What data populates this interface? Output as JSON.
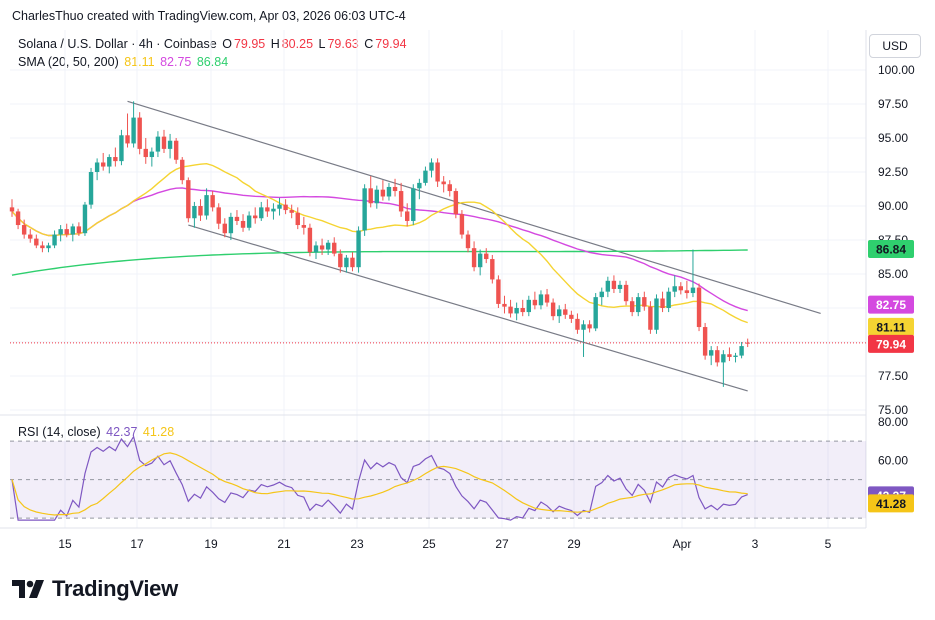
{
  "attribution": "CharlesThuo created with TradingView.com, Apr 03, 2026 06:03 UTC-4",
  "currency": "USD",
  "symbol_legend": {
    "name": "Solana / U.S. Dollar · 4h · Coinbase",
    "open_label": "O",
    "open": "79.95",
    "high_label": "H",
    "high": "80.25",
    "low_label": "L",
    "low": "79.63",
    "close_label": "C",
    "close": "79.94"
  },
  "sma_legend": {
    "label": "SMA (20, 50, 200)",
    "v20": "81.11",
    "v50": "82.75",
    "v200": "86.84"
  },
  "rsi_legend": {
    "label": "RSI (14, close)",
    "rsi": "42.37",
    "ma": "41.28"
  },
  "brand": "TradingView",
  "colors": {
    "up": "#26a69a",
    "down": "#ef5350",
    "sma20": "#f5d432",
    "sma50": "#d449e0",
    "sma200": "#2fcf6e",
    "rsi": "#7e57c2",
    "rsi_ma": "#f5c518",
    "channel": "#787b86",
    "last_price": "#f23645"
  },
  "chart_data": [
    {
      "type": "candlestick",
      "title": "Solana / U.S. Dollar · 4h · Coinbase",
      "x_ticks": [
        "15",
        "17",
        "19",
        "21",
        "23",
        "25",
        "27",
        "29",
        "Apr",
        "3",
        "5"
      ],
      "y_ticks": [
        "75.00",
        "77.50",
        "80.00",
        "82.50",
        "85.00",
        "87.50",
        "90.00",
        "92.50",
        "95.00",
        "97.50",
        "100.00"
      ],
      "ylim": [
        75,
        100
      ],
      "price_labels": [
        {
          "name": "SMA 200",
          "value": "86.84"
        },
        {
          "name": "SMA 50",
          "value": "82.75"
        },
        {
          "name": "SMA 20",
          "value": "81.11"
        },
        {
          "name": "Last price",
          "value": "79.94"
        }
      ],
      "candles": [
        [
          89.9,
          90.5,
          89.2,
          89.6
        ],
        [
          89.6,
          89.8,
          88.3,
          88.6
        ],
        [
          88.6,
          89.0,
          87.6,
          87.9
        ],
        [
          87.9,
          88.3,
          87.3,
          87.6
        ],
        [
          87.6,
          87.9,
          86.9,
          87.1
        ],
        [
          87.1,
          87.4,
          86.6,
          86.9
        ],
        [
          86.9,
          87.3,
          86.6,
          87.1
        ],
        [
          87.1,
          88.2,
          86.9,
          87.9
        ],
        [
          87.9,
          88.6,
          87.4,
          88.3
        ],
        [
          88.3,
          88.7,
          87.7,
          87.9
        ],
        [
          87.9,
          88.7,
          87.4,
          88.5
        ],
        [
          88.5,
          88.8,
          87.8,
          88.0
        ],
        [
          88.0,
          90.3,
          87.8,
          90.1
        ],
        [
          90.1,
          92.8,
          89.8,
          92.5
        ],
        [
          92.5,
          93.5,
          91.9,
          93.2
        ],
        [
          93.2,
          93.9,
          92.6,
          92.9
        ],
        [
          92.9,
          93.8,
          92.4,
          93.6
        ],
        [
          93.6,
          94.3,
          92.9,
          93.3
        ],
        [
          93.3,
          95.6,
          93.0,
          95.2
        ],
        [
          95.2,
          96.8,
          94.3,
          94.6
        ],
        [
          94.6,
          97.7,
          94.3,
          96.5
        ],
        [
          96.5,
          96.9,
          93.8,
          94.2
        ],
        [
          94.2,
          95.0,
          93.1,
          93.6
        ],
        [
          93.6,
          94.3,
          92.9,
          94.0
        ],
        [
          94.0,
          95.5,
          93.6,
          95.1
        ],
        [
          95.1,
          95.6,
          93.9,
          94.2
        ],
        [
          94.2,
          95.3,
          93.5,
          94.8
        ],
        [
          94.8,
          95.0,
          93.1,
          93.4
        ],
        [
          93.4,
          93.6,
          91.6,
          91.9
        ],
        [
          91.9,
          92.1,
          88.8,
          89.1
        ],
        [
          89.1,
          90.3,
          88.4,
          90.0
        ],
        [
          90.0,
          90.5,
          88.9,
          89.3
        ],
        [
          89.3,
          91.3,
          89.0,
          90.8
        ],
        [
          90.8,
          91.1,
          89.6,
          89.9
        ],
        [
          89.9,
          90.2,
          88.3,
          88.7
        ],
        [
          88.7,
          89.1,
          87.7,
          88.0
        ],
        [
          88.0,
          89.5,
          87.5,
          89.2
        ],
        [
          89.2,
          89.7,
          88.6,
          88.9
        ],
        [
          88.9,
          89.4,
          88.1,
          88.4
        ],
        [
          88.4,
          89.6,
          88.2,
          89.3
        ],
        [
          89.3,
          89.9,
          88.7,
          89.1
        ],
        [
          89.1,
          90.3,
          88.9,
          89.9
        ],
        [
          89.9,
          90.5,
          89.2,
          89.6
        ],
        [
          89.6,
          90.2,
          89.0,
          89.8
        ],
        [
          89.8,
          90.6,
          89.3,
          90.1
        ],
        [
          90.1,
          90.5,
          89.4,
          89.7
        ],
        [
          89.7,
          90.1,
          89.1,
          89.5
        ],
        [
          89.5,
          89.9,
          88.3,
          88.6
        ],
        [
          88.6,
          89.2,
          87.9,
          88.4
        ],
        [
          88.4,
          88.7,
          86.3,
          86.6
        ],
        [
          86.6,
          87.4,
          86.1,
          87.1
        ],
        [
          87.1,
          87.6,
          86.4,
          86.8
        ],
        [
          86.8,
          87.5,
          86.4,
          87.3
        ],
        [
          87.3,
          87.7,
          86.3,
          86.5
        ],
        [
          86.5,
          86.8,
          85.1,
          85.5
        ],
        [
          85.5,
          86.4,
          85.1,
          86.2
        ],
        [
          86.2,
          86.6,
          85.2,
          85.5
        ],
        [
          85.5,
          88.5,
          85.1,
          88.2
        ],
        [
          88.2,
          91.6,
          87.8,
          91.3
        ],
        [
          91.3,
          92.2,
          89.9,
          90.2
        ],
        [
          90.2,
          91.5,
          89.8,
          91.2
        ],
        [
          91.2,
          91.9,
          90.4,
          90.7
        ],
        [
          90.7,
          91.7,
          90.4,
          91.4
        ],
        [
          91.4,
          92.0,
          90.7,
          91.1
        ],
        [
          91.1,
          91.7,
          89.2,
          89.6
        ],
        [
          89.6,
          90.2,
          88.5,
          88.9
        ],
        [
          88.9,
          91.6,
          88.6,
          91.3
        ],
        [
          91.3,
          92.0,
          90.5,
          91.7
        ],
        [
          91.7,
          92.9,
          91.5,
          92.6
        ],
        [
          92.6,
          93.5,
          92.1,
          93.2
        ],
        [
          93.2,
          93.5,
          91.4,
          91.8
        ],
        [
          91.8,
          92.2,
          91.0,
          91.6
        ],
        [
          91.6,
          91.9,
          90.7,
          91.1
        ],
        [
          91.1,
          91.3,
          89.1,
          89.4
        ],
        [
          89.4,
          89.7,
          87.6,
          87.9
        ],
        [
          87.9,
          88.2,
          86.6,
          86.9
        ],
        [
          86.9,
          87.4,
          85.2,
          85.5
        ],
        [
          85.5,
          86.8,
          84.9,
          86.5
        ],
        [
          86.5,
          86.9,
          85.8,
          86.1
        ],
        [
          86.1,
          86.4,
          84.3,
          84.6
        ],
        [
          84.6,
          84.9,
          82.5,
          82.8
        ],
        [
          82.8,
          83.4,
          82.1,
          82.6
        ],
        [
          82.6,
          83.1,
          81.8,
          82.1
        ],
        [
          82.1,
          82.9,
          81.6,
          82.5
        ],
        [
          82.5,
          83.1,
          81.9,
          82.2
        ],
        [
          82.2,
          83.4,
          81.9,
          83.1
        ],
        [
          83.1,
          83.7,
          82.4,
          82.7
        ],
        [
          82.7,
          83.8,
          82.4,
          83.5
        ],
        [
          83.5,
          83.9,
          82.6,
          82.9
        ],
        [
          82.9,
          83.2,
          81.6,
          81.9
        ],
        [
          81.9,
          82.7,
          81.4,
          82.4
        ],
        [
          82.4,
          82.8,
          81.7,
          82.0
        ],
        [
          82.0,
          82.3,
          81.4,
          81.7
        ],
        [
          81.7,
          82.1,
          80.6,
          80.9
        ],
        [
          80.9,
          81.6,
          78.9,
          81.3
        ],
        [
          81.3,
          81.6,
          80.7,
          81.0
        ],
        [
          81.0,
          83.6,
          80.8,
          83.3
        ],
        [
          83.3,
          84.0,
          82.7,
          83.7
        ],
        [
          83.7,
          84.8,
          83.3,
          84.5
        ],
        [
          84.5,
          84.9,
          83.6,
          83.9
        ],
        [
          83.9,
          84.5,
          83.6,
          84.2
        ],
        [
          84.2,
          84.5,
          82.7,
          83.0
        ],
        [
          83.0,
          83.3,
          81.9,
          82.2
        ],
        [
          82.2,
          83.6,
          81.9,
          83.3
        ],
        [
          83.3,
          83.7,
          82.3,
          82.6
        ],
        [
          82.6,
          83.0,
          80.6,
          80.9
        ],
        [
          80.9,
          83.5,
          80.6,
          83.2
        ],
        [
          83.2,
          83.7,
          82.2,
          82.5
        ],
        [
          82.5,
          84.0,
          82.2,
          83.7
        ],
        [
          83.7,
          84.9,
          83.3,
          84.1
        ],
        [
          84.1,
          84.4,
          83.5,
          83.8
        ],
        [
          83.8,
          84.5,
          83.2,
          83.6
        ],
        [
          83.6,
          86.8,
          83.3,
          84.0
        ],
        [
          84.0,
          84.3,
          80.8,
          81.1
        ],
        [
          81.1,
          81.4,
          78.7,
          79.0
        ],
        [
          79.0,
          79.7,
          78.3,
          79.4
        ],
        [
          79.4,
          79.7,
          78.2,
          78.5
        ],
        [
          78.5,
          79.4,
          76.7,
          79.1
        ],
        [
          79.1,
          79.6,
          78.6,
          78.9
        ],
        [
          78.9,
          79.2,
          78.5,
          79.0
        ],
        [
          79.0,
          80.0,
          78.8,
          79.7
        ],
        [
          79.95,
          80.25,
          79.63,
          79.94
        ]
      ]
    },
    {
      "type": "line",
      "title": "RSI (14, close)",
      "y_ticks": [
        "40.00",
        "60.00",
        "80.00"
      ],
      "ylim": [
        28,
        82
      ],
      "price_labels": [
        {
          "name": "RSI",
          "value": "42.37"
        },
        {
          "name": "RSI-based MA",
          "value": "41.28"
        }
      ]
    }
  ]
}
